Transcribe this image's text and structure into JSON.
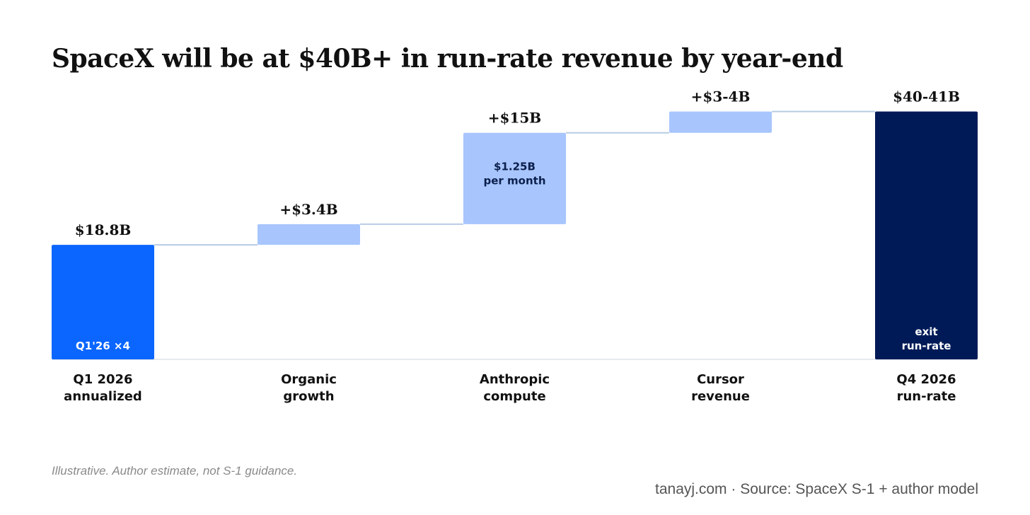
{
  "title": "SpaceX will be at $40B+ in run-rate revenue by year-end",
  "note": "Illustrative. Author estimate, not S-1 guidance.",
  "source": "tanayj.com · Source: SpaceX S-1 + author model",
  "chart_data": {
    "type": "bar",
    "subtype": "waterfall",
    "title": "SpaceX will be at $40B+ in run-rate revenue by year-end",
    "xlabel": "",
    "ylabel": "",
    "ylim": [
      0,
      41
    ],
    "grid": false,
    "legend": "none",
    "bars": [
      {
        "category_lines": [
          "Q1 2026",
          "annualized"
        ],
        "kind": "total",
        "start": 0,
        "end": 18.8,
        "value_label": "$18.8B",
        "inner_lines": [
          "Q1'26 ×4"
        ],
        "color": "#0A66FF"
      },
      {
        "category_lines": [
          "Organic",
          "growth"
        ],
        "kind": "delta",
        "start": 18.8,
        "end": 22.2,
        "value_label": "+$3.4B",
        "inner_lines": [],
        "color": "#A8C6FD"
      },
      {
        "category_lines": [
          "Anthropic",
          "compute"
        ],
        "kind": "delta",
        "start": 22.2,
        "end": 37.2,
        "value_label": "+$15B",
        "inner_lines": [
          "$1.25B",
          "per month"
        ],
        "color": "#A8C6FD"
      },
      {
        "category_lines": [
          "Cursor",
          "revenue"
        ],
        "kind": "delta",
        "start": 37.2,
        "end": 40.7,
        "value_label": "+$3-4B",
        "inner_lines": [],
        "color": "#A8C6FD"
      },
      {
        "category_lines": [
          "Q4 2026",
          "run-rate"
        ],
        "kind": "total",
        "start": 0,
        "end": 40.7,
        "value_label": "$40-41B",
        "inner_lines": [
          "exit",
          "run-rate"
        ],
        "color": "#001A57"
      }
    ],
    "colors": {
      "connector": "#B8CCE4",
      "baseline": "#E6E9EE",
      "inner_text_dark": "#0B1F4D",
      "inner_text_light": "#FFFFFF"
    }
  }
}
